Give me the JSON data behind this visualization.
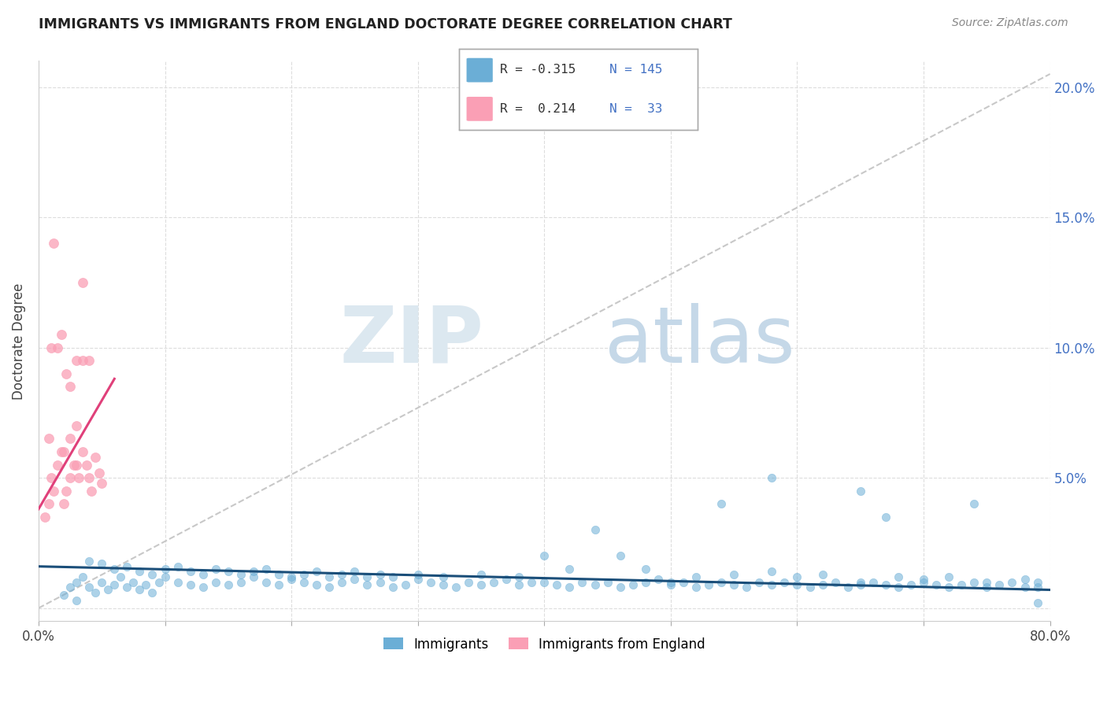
{
  "title": "IMMIGRANTS VS IMMIGRANTS FROM ENGLAND DOCTORATE DEGREE CORRELATION CHART",
  "source": "Source: ZipAtlas.com",
  "ylabel": "Doctorate Degree",
  "xlim": [
    0.0,
    0.8
  ],
  "ylim": [
    -0.005,
    0.21
  ],
  "blue_color": "#6baed6",
  "pink_color": "#fa9fb5",
  "trend_blue_color": "#1a4e79",
  "trend_pink_color": "#e0407a",
  "trend_gray_color": "#c8c8c8",
  "blue_scatter_x": [
    0.02,
    0.025,
    0.03,
    0.035,
    0.04,
    0.045,
    0.05,
    0.055,
    0.06,
    0.065,
    0.07,
    0.075,
    0.08,
    0.085,
    0.09,
    0.095,
    0.1,
    0.11,
    0.12,
    0.13,
    0.14,
    0.15,
    0.16,
    0.17,
    0.18,
    0.19,
    0.2,
    0.21,
    0.22,
    0.23,
    0.24,
    0.25,
    0.26,
    0.27,
    0.28,
    0.29,
    0.3,
    0.31,
    0.32,
    0.33,
    0.34,
    0.35,
    0.36,
    0.37,
    0.38,
    0.39,
    0.4,
    0.41,
    0.42,
    0.43,
    0.44,
    0.45,
    0.46,
    0.47,
    0.48,
    0.49,
    0.5,
    0.51,
    0.52,
    0.53,
    0.54,
    0.55,
    0.56,
    0.57,
    0.58,
    0.59,
    0.6,
    0.61,
    0.62,
    0.63,
    0.64,
    0.65,
    0.66,
    0.67,
    0.68,
    0.69,
    0.7,
    0.71,
    0.72,
    0.73,
    0.74,
    0.75,
    0.76,
    0.77,
    0.78,
    0.79,
    0.03,
    0.04,
    0.05,
    0.06,
    0.07,
    0.08,
    0.09,
    0.1,
    0.11,
    0.12,
    0.13,
    0.14,
    0.15,
    0.16,
    0.17,
    0.18,
    0.19,
    0.2,
    0.21,
    0.22,
    0.23,
    0.24,
    0.25,
    0.26,
    0.27,
    0.28,
    0.3,
    0.32,
    0.35,
    0.38,
    0.4,
    0.42,
    0.44,
    0.46,
    0.48,
    0.5,
    0.52,
    0.55,
    0.58,
    0.6,
    0.62,
    0.65,
    0.68,
    0.7,
    0.72,
    0.75,
    0.78,
    0.79,
    0.54,
    0.58,
    0.65,
    0.67,
    0.74,
    0.79
  ],
  "blue_scatter_y": [
    0.005,
    0.008,
    0.01,
    0.012,
    0.008,
    0.006,
    0.01,
    0.007,
    0.009,
    0.012,
    0.008,
    0.01,
    0.007,
    0.009,
    0.006,
    0.01,
    0.012,
    0.01,
    0.009,
    0.008,
    0.01,
    0.009,
    0.01,
    0.012,
    0.01,
    0.009,
    0.011,
    0.01,
    0.009,
    0.008,
    0.01,
    0.011,
    0.009,
    0.01,
    0.008,
    0.009,
    0.011,
    0.01,
    0.009,
    0.008,
    0.01,
    0.009,
    0.01,
    0.011,
    0.009,
    0.01,
    0.01,
    0.009,
    0.008,
    0.01,
    0.009,
    0.01,
    0.008,
    0.009,
    0.01,
    0.011,
    0.009,
    0.01,
    0.008,
    0.009,
    0.01,
    0.009,
    0.008,
    0.01,
    0.009,
    0.01,
    0.009,
    0.008,
    0.009,
    0.01,
    0.008,
    0.009,
    0.01,
    0.009,
    0.008,
    0.009,
    0.01,
    0.009,
    0.008,
    0.009,
    0.01,
    0.008,
    0.009,
    0.01,
    0.008,
    0.002,
    0.003,
    0.018,
    0.017,
    0.015,
    0.016,
    0.014,
    0.013,
    0.015,
    0.016,
    0.014,
    0.013,
    0.015,
    0.014,
    0.013,
    0.014,
    0.015,
    0.013,
    0.012,
    0.013,
    0.014,
    0.012,
    0.013,
    0.014,
    0.012,
    0.013,
    0.012,
    0.013,
    0.012,
    0.013,
    0.012,
    0.02,
    0.015,
    0.03,
    0.02,
    0.015,
    0.01,
    0.012,
    0.013,
    0.014,
    0.012,
    0.013,
    0.01,
    0.012,
    0.011,
    0.012,
    0.01,
    0.011,
    0.01,
    0.04,
    0.05,
    0.045,
    0.035,
    0.04,
    0.008
  ],
  "pink_scatter_x": [
    0.005,
    0.008,
    0.01,
    0.012,
    0.015,
    0.018,
    0.02,
    0.022,
    0.025,
    0.028,
    0.03,
    0.032,
    0.035,
    0.038,
    0.04,
    0.042,
    0.045,
    0.048,
    0.05,
    0.022,
    0.025,
    0.03,
    0.035,
    0.04,
    0.015,
    0.018,
    0.008,
    0.01,
    0.012,
    0.02,
    0.025,
    0.03,
    0.035
  ],
  "pink_scatter_y": [
    0.035,
    0.04,
    0.05,
    0.045,
    0.055,
    0.06,
    0.04,
    0.045,
    0.05,
    0.055,
    0.055,
    0.05,
    0.06,
    0.055,
    0.05,
    0.045,
    0.058,
    0.052,
    0.048,
    0.09,
    0.085,
    0.095,
    0.125,
    0.095,
    0.1,
    0.105,
    0.065,
    0.1,
    0.14,
    0.06,
    0.065,
    0.07,
    0.095
  ],
  "blue_trend_x": [
    0.0,
    0.8
  ],
  "blue_trend_y": [
    0.016,
    0.007
  ],
  "pink_trend_x": [
    0.0,
    0.06
  ],
  "pink_trend_y": [
    0.038,
    0.088
  ],
  "gray_trend_x": [
    0.0,
    0.8
  ],
  "gray_trend_y": [
    0.0,
    0.205
  ],
  "ytick_positions": [
    0.0,
    0.05,
    0.1,
    0.15,
    0.2
  ],
  "ytick_right_labels": [
    "",
    "5.0%",
    "10.0%",
    "15.0%",
    "20.0%"
  ],
  "xtick_positions": [
    0.0,
    0.1,
    0.2,
    0.3,
    0.4,
    0.5,
    0.6,
    0.7,
    0.8
  ],
  "xtick_labels": [
    "0.0%",
    "",
    "",
    "",
    "",
    "",
    "",
    "",
    "80.0%"
  ]
}
